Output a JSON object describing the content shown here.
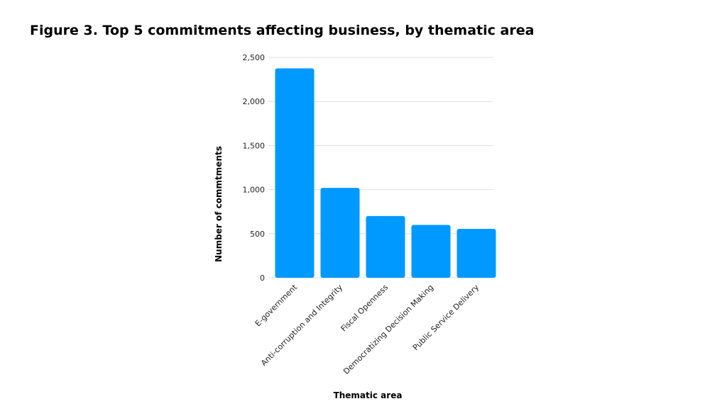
{
  "chart_data": {
    "type": "bar",
    "title": "Figure 3. Top 5 commitments affecting business, by thematic area",
    "x_label": "Thematic area",
    "y_label": "Number of commtments",
    "categories": [
      "E-government",
      "Anti-corruption and Integrity",
      "Fiscal Openness",
      "Democratizing Decision Making",
      "Public Service Delivery"
    ],
    "values": [
      2375,
      1020,
      700,
      600,
      555
    ],
    "color": "#0099ff",
    "ylim": [
      0,
      2500
    ],
    "yticks": [
      0,
      500,
      {
        "value": 1000,
        "label": "1,000"
      },
      {
        "value": 1500,
        "label": "1,500"
      },
      {
        "value": 2000,
        "label": "2,000"
      },
      {
        "value": 2500,
        "label": "2,500"
      }
    ],
    "grid": true
  }
}
